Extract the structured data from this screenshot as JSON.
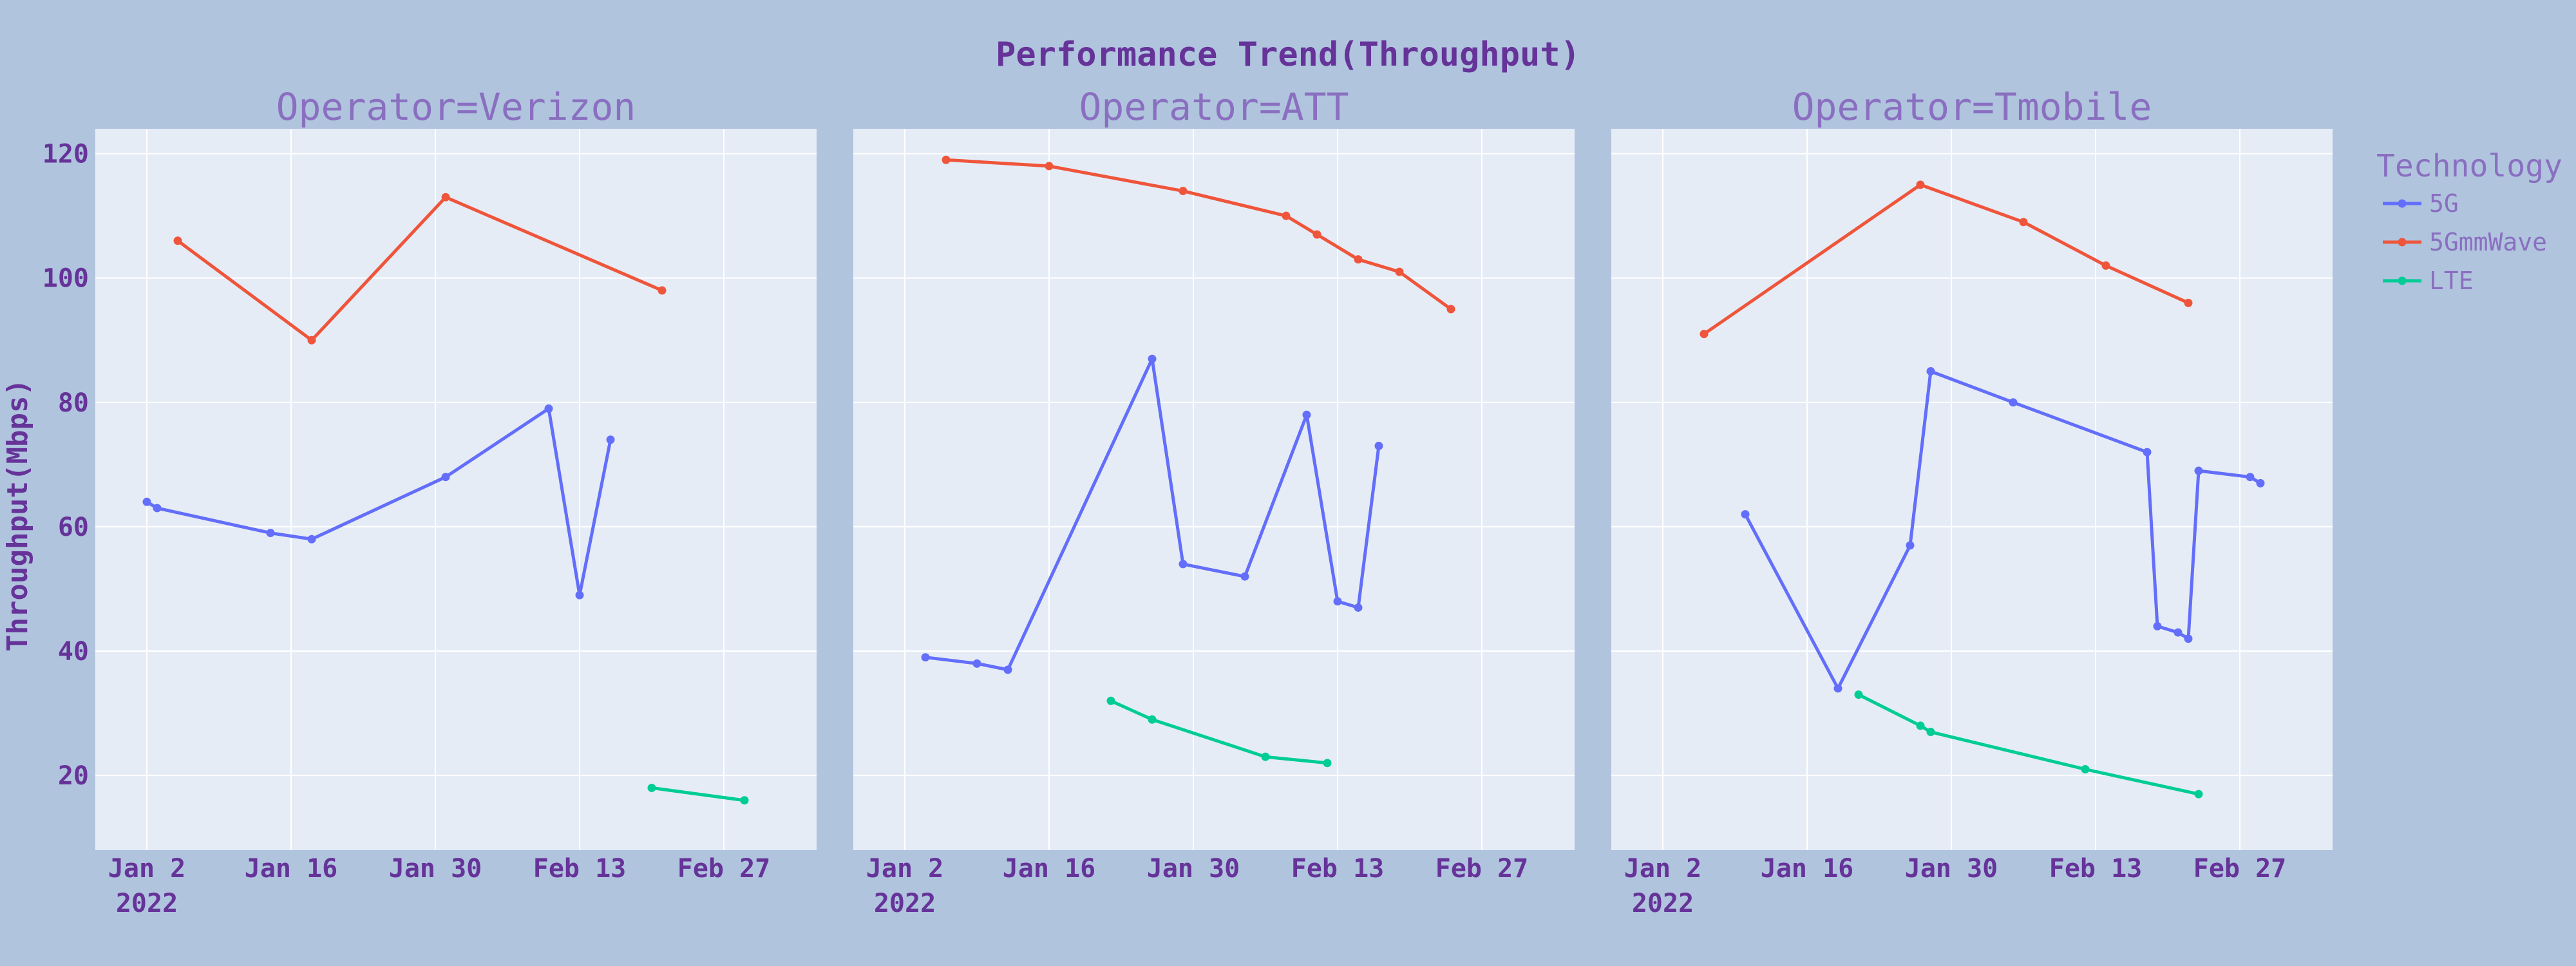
{
  "chart_data": {
    "type": "line",
    "title": "Performance Trend(Throughput)",
    "ylabel": "Throughput(Mbps)",
    "ylim": [
      8,
      124
    ],
    "yticks": [
      20,
      40,
      60,
      80,
      100,
      120
    ],
    "xticks": [
      {
        "date": "2022-01-02",
        "label": "Jan 2",
        "sublabel": "2022"
      },
      {
        "date": "2022-01-16",
        "label": "Jan 16"
      },
      {
        "date": "2022-01-30",
        "label": "Jan 30"
      },
      {
        "date": "2022-02-13",
        "label": "Feb 13"
      },
      {
        "date": "2022-02-27",
        "label": "Feb 27"
      }
    ],
    "xlim": [
      "2021-12-28",
      "2022-03-08"
    ],
    "grid": true,
    "legend": {
      "title": "Technology",
      "placement": "top-right"
    },
    "colors": {
      "5G": "#636efa",
      "5GmmWave": "#ef553b",
      "LTE": "#00cc96"
    },
    "panels": [
      {
        "title": "Operator=Verizon",
        "series": [
          {
            "name": "5G",
            "points": [
              [
                "2022-01-02",
                64
              ],
              [
                "2022-01-03",
                63
              ],
              [
                "2022-01-14",
                59
              ],
              [
                "2022-01-18",
                58
              ],
              [
                "2022-01-31",
                68
              ],
              [
                "2022-02-10",
                79
              ],
              [
                "2022-02-13",
                49
              ],
              [
                "2022-02-16",
                74
              ]
            ]
          },
          {
            "name": "5GmmWave",
            "points": [
              [
                "2022-01-05",
                106
              ],
              [
                "2022-01-18",
                90
              ],
              [
                "2022-01-31",
                113
              ],
              [
                "2022-02-21",
                98
              ]
            ]
          },
          {
            "name": "LTE",
            "points": [
              [
                "2022-02-20",
                18
              ],
              [
                "2022-03-01",
                16
              ]
            ]
          }
        ]
      },
      {
        "title": "Operator=ATT",
        "series": [
          {
            "name": "5G",
            "points": [
              [
                "2022-01-04",
                39
              ],
              [
                "2022-01-09",
                38
              ],
              [
                "2022-01-12",
                37
              ],
              [
                "2022-01-26",
                87
              ],
              [
                "2022-01-29",
                54
              ],
              [
                "2022-02-04",
                52
              ],
              [
                "2022-02-10",
                78
              ],
              [
                "2022-02-13",
                48
              ],
              [
                "2022-02-15",
                47
              ],
              [
                "2022-02-17",
                73
              ]
            ]
          },
          {
            "name": "5GmmWave",
            "points": [
              [
                "2022-01-06",
                119
              ],
              [
                "2022-01-16",
                118
              ],
              [
                "2022-01-29",
                114
              ],
              [
                "2022-02-08",
                110
              ],
              [
                "2022-02-11",
                107
              ],
              [
                "2022-02-15",
                103
              ],
              [
                "2022-02-19",
                101
              ],
              [
                "2022-02-24",
                95
              ]
            ]
          },
          {
            "name": "LTE",
            "points": [
              [
                "2022-01-22",
                32
              ],
              [
                "2022-01-26",
                29
              ],
              [
                "2022-02-06",
                23
              ],
              [
                "2022-02-12",
                22
              ]
            ]
          }
        ]
      },
      {
        "title": "Operator=Tmobile",
        "series": [
          {
            "name": "5G",
            "points": [
              [
                "2022-01-10",
                62
              ],
              [
                "2022-01-19",
                34
              ],
              [
                "2022-01-26",
                57
              ],
              [
                "2022-01-28",
                85
              ],
              [
                "2022-02-05",
                80
              ],
              [
                "2022-02-18",
                72
              ],
              [
                "2022-02-19",
                44
              ],
              [
                "2022-02-21",
                43
              ],
              [
                "2022-02-22",
                42
              ],
              [
                "2022-02-23",
                69
              ],
              [
                "2022-02-28",
                68
              ],
              [
                "2022-03-01",
                67
              ]
            ]
          },
          {
            "name": "5GmmWave",
            "points": [
              [
                "2022-01-06",
                91
              ],
              [
                "2022-01-27",
                115
              ],
              [
                "2022-02-06",
                109
              ],
              [
                "2022-02-14",
                102
              ],
              [
                "2022-02-22",
                96
              ]
            ]
          },
          {
            "name": "LTE",
            "points": [
              [
                "2022-01-21",
                33
              ],
              [
                "2022-01-27",
                28
              ],
              [
                "2022-01-28",
                27
              ],
              [
                "2022-02-12",
                21
              ],
              [
                "2022-02-23",
                17
              ]
            ]
          }
        ]
      }
    ]
  }
}
